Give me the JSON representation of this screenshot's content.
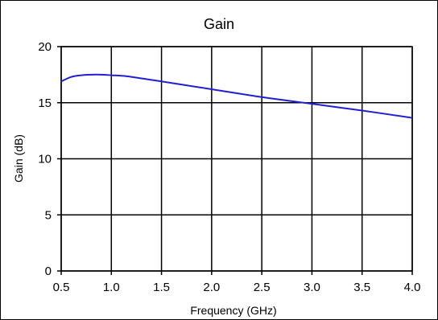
{
  "chart_data": {
    "type": "line",
    "title": "Gain",
    "xlabel": "Frequency (GHz)",
    "ylabel": "Gain (dB)",
    "xlim": [
      0.5,
      4.0
    ],
    "ylim": [
      0,
      20
    ],
    "xticks": [
      "0.5",
      "1.0",
      "1.5",
      "2.0",
      "2.5",
      "3.0",
      "3.5",
      "4.0"
    ],
    "yticks": [
      "0",
      "5",
      "10",
      "15",
      "20"
    ],
    "grid": true,
    "series": [
      {
        "color": "#1f1fd6",
        "x": [
          0.5,
          0.6,
          0.7,
          0.8,
          0.9,
          1.0,
          1.1,
          1.2,
          1.5,
          2.0,
          2.5,
          3.0,
          3.5,
          4.0
        ],
        "y": [
          16.9,
          17.3,
          17.45,
          17.5,
          17.5,
          17.45,
          17.4,
          17.3,
          16.9,
          16.2,
          15.5,
          14.9,
          14.3,
          13.65
        ]
      }
    ]
  }
}
